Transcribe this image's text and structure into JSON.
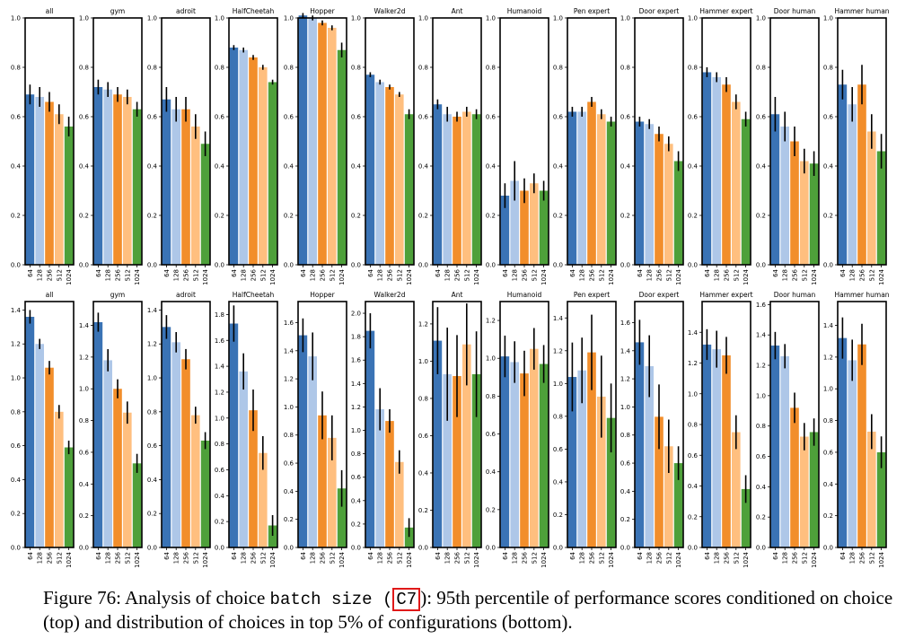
{
  "chart_data": {
    "type": "bar",
    "categories": [
      "64",
      "128",
      "256",
      "512",
      "1024"
    ],
    "series_colors": [
      "#3a73b5",
      "#aec7e8",
      "#f28e2b",
      "#ffbf7f",
      "#4ea03a"
    ],
    "panel_titles": [
      "all",
      "gym",
      "adroit",
      "HalfCheetah",
      "Hopper",
      "Walker2d",
      "Ant",
      "Humanoid",
      "Pen expert",
      "Door expert",
      "Hammer expert",
      "Door human",
      "Hammer human"
    ],
    "rows": [
      {
        "label": "top",
        "panels": [
          {
            "title": "all",
            "ylim": [
              0,
              1.0
            ],
            "yticks": [
              "0.0",
              "0.2",
              "0.4",
              "0.6",
              "0.8",
              "1.0"
            ],
            "values": [
              0.69,
              0.68,
              0.66,
              0.61,
              0.56
            ],
            "err": [
              0.04,
              0.04,
              0.04,
              0.04,
              0.04
            ]
          },
          {
            "title": "gym",
            "ylim": [
              0,
              1.0
            ],
            "yticks": [
              "0.0",
              "0.2",
              "0.4",
              "0.6",
              "0.8",
              "1.0"
            ],
            "values": [
              0.72,
              0.71,
              0.69,
              0.68,
              0.63
            ],
            "err": [
              0.03,
              0.03,
              0.03,
              0.03,
              0.03
            ]
          },
          {
            "title": "adroit",
            "ylim": [
              0,
              1.0
            ],
            "yticks": [
              "0.0",
              "0.2",
              "0.4",
              "0.6",
              "0.8",
              "1.0"
            ],
            "values": [
              0.67,
              0.63,
              0.63,
              0.56,
              0.49
            ],
            "err": [
              0.05,
              0.05,
              0.05,
              0.05,
              0.05
            ]
          },
          {
            "title": "HalfCheetah",
            "ylim": [
              0,
              1.0
            ],
            "yticks": [
              "0.0",
              "0.2",
              "0.4",
              "0.6",
              "0.8",
              "1.0"
            ],
            "values": [
              0.88,
              0.87,
              0.84,
              0.8,
              0.74
            ],
            "err": [
              0.01,
              0.01,
              0.01,
              0.01,
              0.01
            ]
          },
          {
            "title": "Hopper",
            "ylim": [
              0,
              1.0
            ],
            "yticks": [
              "0.0",
              "0.2",
              "0.4",
              "0.6",
              "0.8",
              "1.0"
            ],
            "values": [
              1.01,
              1.0,
              0.98,
              0.96,
              0.87
            ],
            "err": [
              0.01,
              0.01,
              0.01,
              0.01,
              0.03
            ]
          },
          {
            "title": "Walker2d",
            "ylim": [
              0,
              1.0
            ],
            "yticks": [
              "0.0",
              "0.2",
              "0.4",
              "0.6",
              "0.8",
              "1.0"
            ],
            "values": [
              0.77,
              0.74,
              0.72,
              0.69,
              0.61
            ],
            "err": [
              0.01,
              0.01,
              0.01,
              0.01,
              0.02
            ]
          },
          {
            "title": "Ant",
            "ylim": [
              0,
              1.0
            ],
            "yticks": [
              "0.0",
              "0.2",
              "0.4",
              "0.6",
              "0.8",
              "1.0"
            ],
            "values": [
              0.65,
              0.61,
              0.6,
              0.62,
              0.61
            ],
            "err": [
              0.02,
              0.03,
              0.02,
              0.02,
              0.02
            ]
          },
          {
            "title": "Humanoid",
            "ylim": [
              0,
              1.0
            ],
            "yticks": [
              "0.0",
              "0.2",
              "0.4",
              "0.6",
              "0.8",
              "1.0"
            ],
            "values": [
              0.28,
              0.34,
              0.3,
              0.33,
              0.3
            ],
            "err": [
              0.05,
              0.08,
              0.05,
              0.04,
              0.04
            ]
          },
          {
            "title": "Pen expert",
            "ylim": [
              0,
              1.0
            ],
            "yticks": [
              "0.0",
              "0.2",
              "0.4",
              "0.6",
              "0.8",
              "1.0"
            ],
            "values": [
              0.62,
              0.62,
              0.66,
              0.61,
              0.58
            ],
            "err": [
              0.02,
              0.02,
              0.02,
              0.02,
              0.02
            ]
          },
          {
            "title": "Door expert",
            "ylim": [
              0,
              1.0
            ],
            "yticks": [
              "0.0",
              "0.2",
              "0.4",
              "0.6",
              "0.8",
              "1.0"
            ],
            "values": [
              0.58,
              0.57,
              0.53,
              0.49,
              0.42
            ],
            "err": [
              0.02,
              0.02,
              0.03,
              0.03,
              0.04
            ]
          },
          {
            "title": "Hammer expert",
            "ylim": [
              0,
              1.0
            ],
            "yticks": [
              "0.0",
              "0.2",
              "0.4",
              "0.6",
              "0.8",
              "1.0"
            ],
            "values": [
              0.78,
              0.76,
              0.73,
              0.66,
              0.59
            ],
            "err": [
              0.02,
              0.02,
              0.03,
              0.03,
              0.03
            ]
          },
          {
            "title": "Door human",
            "ylim": [
              0,
              1.0
            ],
            "yticks": [
              "0.0",
              "0.2",
              "0.4",
              "0.6",
              "0.8",
              "1.0"
            ],
            "values": [
              0.61,
              0.56,
              0.5,
              0.42,
              0.41
            ],
            "err": [
              0.07,
              0.06,
              0.06,
              0.05,
              0.05
            ]
          },
          {
            "title": "Hammer human",
            "ylim": [
              0,
              1.0
            ],
            "yticks": [
              "0.0",
              "0.2",
              "0.4",
              "0.6",
              "0.8",
              "1.0"
            ],
            "values": [
              0.73,
              0.65,
              0.73,
              0.54,
              0.46
            ],
            "err": [
              0.06,
              0.07,
              0.08,
              0.07,
              0.07
            ]
          }
        ]
      },
      {
        "label": "bottom",
        "panels": [
          {
            "title": "all",
            "ylim": [
              0,
              1.45
            ],
            "yticks": [
              "0.0",
              "0.2",
              "0.4",
              "0.6",
              "0.8",
              "1.0",
              "1.2",
              "1.4"
            ],
            "values": [
              1.36,
              1.2,
              1.06,
              0.8,
              0.59
            ],
            "err": [
              0.04,
              0.03,
              0.04,
              0.04,
              0.04
            ]
          },
          {
            "title": "gym",
            "ylim": [
              0,
              1.55
            ],
            "yticks": [
              "0.0",
              "0.2",
              "0.4",
              "0.6",
              "0.8",
              "1.0",
              "1.2",
              "1.4"
            ],
            "values": [
              1.42,
              1.18,
              1.0,
              0.85,
              0.53
            ],
            "err": [
              0.06,
              0.07,
              0.06,
              0.07,
              0.06
            ]
          },
          {
            "title": "adroit",
            "ylim": [
              0,
              1.45
            ],
            "yticks": [
              "0.0",
              "0.2",
              "0.4",
              "0.6",
              "0.8",
              "1.0",
              "1.2",
              "1.4"
            ],
            "values": [
              1.3,
              1.21,
              1.11,
              0.78,
              0.63
            ],
            "err": [
              0.07,
              0.06,
              0.06,
              0.05,
              0.05
            ]
          },
          {
            "title": "HalfCheetah",
            "ylim": [
              0,
              1.9
            ],
            "yticks": [
              "0.0",
              "0.2",
              "0.4",
              "0.6",
              "0.8",
              "1.0",
              "1.2",
              "1.4",
              "1.6",
              "1.8"
            ],
            "values": [
              1.73,
              1.36,
              1.06,
              0.73,
              0.17
            ],
            "err": [
              0.14,
              0.14,
              0.16,
              0.13,
              0.08
            ]
          },
          {
            "title": "Hopper",
            "ylim": [
              0,
              1.75
            ],
            "yticks": [
              "0.0",
              "0.2",
              "0.4",
              "0.6",
              "0.8",
              "1.0",
              "1.2",
              "1.4",
              "1.6"
            ],
            "values": [
              1.51,
              1.36,
              0.94,
              0.78,
              0.42
            ],
            "err": [
              0.12,
              0.17,
              0.17,
              0.16,
              0.13
            ]
          },
          {
            "title": "Walker2d",
            "ylim": [
              0,
              2.1
            ],
            "yticks": [
              "0.0",
              "0.2",
              "0.4",
              "0.6",
              "0.8",
              "1.0",
              "1.2",
              "1.4",
              "1.6",
              "1.8",
              "2.0"
            ],
            "values": [
              1.85,
              1.18,
              1.08,
              0.73,
              0.17
            ],
            "err": [
              0.15,
              0.18,
              0.1,
              0.1,
              0.08
            ]
          },
          {
            "title": "Ant",
            "ylim": [
              0,
              1.32
            ],
            "yticks": [
              "0.0",
              "0.2",
              "0.4",
              "0.6",
              "0.8",
              "1.0",
              "1.2"
            ],
            "values": [
              1.11,
              0.93,
              0.92,
              1.09,
              0.93
            ],
            "err": [
              0.18,
              0.25,
              0.22,
              0.22,
              0.23
            ]
          },
          {
            "title": "Humanoid",
            "ylim": [
              0,
              1.3
            ],
            "yticks": [
              "0.0",
              "0.2",
              "0.4",
              "0.6",
              "0.8",
              "1.0",
              "1.2"
            ],
            "values": [
              1.01,
              0.98,
              0.92,
              1.05,
              0.97
            ],
            "err": [
              0.11,
              0.11,
              0.12,
              0.11,
              0.1
            ]
          },
          {
            "title": "Pen expert",
            "ylim": [
              0,
              1.5
            ],
            "yticks": [
              "0.0",
              "0.2",
              "0.4",
              "0.6",
              "0.8",
              "1.0",
              "1.2",
              "1.4"
            ],
            "values": [
              1.04,
              1.08,
              1.19,
              0.92,
              0.79
            ],
            "err": [
              0.21,
              0.2,
              0.23,
              0.25,
              0.21
            ]
          },
          {
            "title": "Door expert",
            "ylim": [
              0,
              1.75
            ],
            "yticks": [
              "0.0",
              "0.2",
              "0.4",
              "0.6",
              "0.8",
              "1.0",
              "1.2",
              "1.4",
              "1.6"
            ],
            "values": [
              1.46,
              1.29,
              0.93,
              0.72,
              0.6
            ],
            "err": [
              0.16,
              0.22,
              0.23,
              0.19,
              0.12
            ]
          },
          {
            "title": "Hammer expert",
            "ylim": [
              0,
              1.6
            ],
            "yticks": [
              "0.0",
              "0.2",
              "0.4",
              "0.6",
              "0.8",
              "1.0",
              "1.2",
              "1.4"
            ],
            "values": [
              1.32,
              1.29,
              1.25,
              0.75,
              0.38
            ],
            "err": [
              0.1,
              0.12,
              0.12,
              0.11,
              0.09
            ]
          },
          {
            "title": "Door human",
            "ylim": [
              0,
              1.62
            ],
            "yticks": [
              "0.0",
              "0.2",
              "0.4",
              "0.6",
              "0.8",
              "1.0",
              "1.2",
              "1.4",
              "1.6"
            ],
            "values": [
              1.33,
              1.26,
              0.92,
              0.73,
              0.76
            ],
            "err": [
              0.09,
              0.08,
              0.1,
              0.09,
              0.09
            ]
          },
          {
            "title": "Hammer human",
            "ylim": [
              0,
              1.55
            ],
            "yticks": [
              "0.0",
              "0.2",
              "0.4",
              "0.6",
              "0.8",
              "1.0",
              "1.2",
              "1.4"
            ],
            "values": [
              1.32,
              1.18,
              1.28,
              0.73,
              0.6
            ],
            "err": [
              0.13,
              0.13,
              0.13,
              0.11,
              0.1
            ]
          }
        ]
      }
    ]
  },
  "caption": {
    "prefix": "Figure 76: Analysis of choice ",
    "code": "batch size",
    "paren_open": " (",
    "boxed": "C7",
    "rest": "): 95th percentile of performance scores conditioned on choice (top) and distribution of choices in top 5% of configurations (bottom)."
  }
}
